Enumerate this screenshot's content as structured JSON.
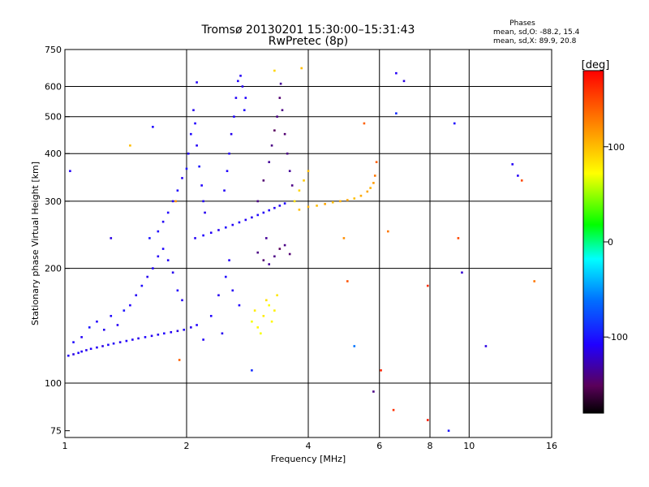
{
  "chart_data": {
    "type": "scatter",
    "title": "Tromsø 20130201 15:30:00–15:31:43",
    "subtitle": "RwPretec (8p)",
    "stats": {
      "heading": "Phases",
      "line_o": "mean, sd,O: -88.2, 15.4",
      "line_x": "mean, sd,X:  89.9, 20.8"
    },
    "xlabel": "Frequency [MHz]",
    "ylabel": "Stationary phase Virtual Height [km]",
    "xscale": "log",
    "yscale": "log",
    "xlim": [
      1,
      16
    ],
    "ylim": [
      72,
      750
    ],
    "x_ticks": [
      {
        "value": 1,
        "label": "1"
      },
      {
        "value": 2,
        "label": "2"
      },
      {
        "value": 4,
        "label": "4"
      },
      {
        "value": 6,
        "label": "6"
      },
      {
        "value": 8,
        "label": "8"
      },
      {
        "value": 10,
        "label": "10"
      },
      {
        "value": 16,
        "label": "16"
      }
    ],
    "x_gridlines": [
      2,
      4,
      6,
      8,
      10
    ],
    "y_ticks": [
      {
        "value": 75,
        "label": "75"
      },
      {
        "value": 100,
        "label": "100"
      },
      {
        "value": 200,
        "label": "200"
      },
      {
        "value": 300,
        "label": "300"
      },
      {
        "value": 400,
        "label": "400"
      },
      {
        "value": 500,
        "label": "500"
      },
      {
        "value": 600,
        "label": "600"
      },
      {
        "value": 750,
        "label": "750"
      }
    ],
    "y_gridlines": [
      100,
      200,
      300,
      400,
      500,
      600
    ],
    "grid": true,
    "colorbar": {
      "label": "[deg]",
      "min": -180,
      "max": 180,
      "ticks": [
        {
          "value": 100,
          "label": "100"
        },
        {
          "value": 0,
          "label": "0"
        },
        {
          "value": -100,
          "label": "-100"
        }
      ],
      "colormap": "rainbow"
    },
    "series": [
      {
        "values": [
          [
            1.02,
            118,
            -110
          ],
          [
            1.05,
            119,
            -115
          ],
          [
            1.08,
            120,
            -105
          ],
          [
            1.1,
            121,
            -110
          ],
          [
            1.13,
            122,
            -112
          ],
          [
            1.16,
            123,
            -108
          ],
          [
            1.2,
            124,
            -110
          ],
          [
            1.24,
            125,
            -115
          ],
          [
            1.28,
            126,
            -105
          ],
          [
            1.32,
            127,
            -110
          ],
          [
            1.37,
            128,
            -112
          ],
          [
            1.42,
            129,
            -108
          ],
          [
            1.47,
            130,
            -110
          ],
          [
            1.52,
            131,
            -114
          ],
          [
            1.58,
            132,
            -106
          ],
          [
            1.64,
            133,
            -110
          ],
          [
            1.7,
            134,
            -112
          ],
          [
            1.76,
            135,
            -108
          ],
          [
            1.83,
            136,
            -110
          ],
          [
            1.9,
            137,
            -115
          ],
          [
            1.97,
            138,
            -110
          ],
          [
            2.05,
            140,
            -112
          ],
          [
            2.12,
            142,
            -108
          ],
          [
            1.05,
            128,
            -105
          ],
          [
            1.1,
            132,
            -110
          ],
          [
            1.15,
            140,
            -100
          ],
          [
            1.2,
            145,
            -108
          ],
          [
            1.25,
            138,
            -112
          ],
          [
            1.3,
            150,
            -106
          ],
          [
            1.35,
            142,
            -110
          ],
          [
            1.4,
            155,
            -100
          ],
          [
            1.45,
            160,
            -108
          ],
          [
            1.5,
            170,
            -110
          ],
          [
            1.55,
            180,
            -105
          ],
          [
            1.6,
            190,
            -112
          ],
          [
            1.65,
            200,
            -108
          ],
          [
            1.7,
            215,
            -110
          ],
          [
            1.75,
            225,
            -106
          ],
          [
            1.8,
            210,
            -110
          ],
          [
            1.85,
            195,
            -112
          ],
          [
            1.9,
            175,
            -108
          ],
          [
            1.95,
            165,
            -110
          ],
          [
            1.62,
            240,
            -100
          ],
          [
            1.7,
            250,
            -105
          ],
          [
            1.75,
            265,
            -110
          ],
          [
            1.8,
            280,
            -108
          ],
          [
            1.85,
            300,
            -112
          ],
          [
            1.9,
            320,
            -106
          ],
          [
            1.95,
            345,
            -110
          ],
          [
            2.0,
            365,
            -100
          ],
          [
            2.02,
            400,
            -110
          ],
          [
            2.05,
            450,
            -105
          ],
          [
            2.08,
            520,
            -112
          ],
          [
            2.1,
            480,
            -108
          ],
          [
            2.12,
            420,
            -110
          ],
          [
            2.15,
            370,
            -100
          ],
          [
            2.18,
            330,
            -108
          ],
          [
            2.2,
            300,
            -110
          ],
          [
            2.22,
            280,
            -112
          ],
          [
            2.1,
            240,
            -110
          ],
          [
            2.2,
            244,
            -108
          ],
          [
            2.3,
            248,
            -110
          ],
          [
            2.4,
            252,
            -112
          ],
          [
            2.5,
            256,
            -106
          ],
          [
            2.6,
            260,
            -110
          ],
          [
            2.7,
            264,
            -108
          ],
          [
            2.8,
            268,
            -110
          ],
          [
            2.9,
            272,
            -112
          ],
          [
            3.0,
            276,
            -106
          ],
          [
            3.1,
            280,
            -110
          ],
          [
            3.2,
            284,
            -108
          ],
          [
            3.3,
            288,
            -110
          ],
          [
            3.4,
            292,
            -112
          ],
          [
            3.5,
            296,
            -106
          ],
          [
            2.48,
            320,
            -110
          ],
          [
            2.52,
            360,
            -108
          ],
          [
            2.55,
            400,
            -110
          ],
          [
            2.58,
            450,
            -112
          ],
          [
            2.62,
            500,
            -106
          ],
          [
            2.65,
            560,
            -110
          ],
          [
            2.68,
            620,
            -108
          ],
          [
            2.72,
            640,
            -110
          ],
          [
            2.75,
            600,
            -112
          ],
          [
            2.78,
            520,
            -106
          ],
          [
            2.2,
            130,
            -110
          ],
          [
            2.3,
            150,
            -108
          ],
          [
            2.4,
            170,
            -112
          ],
          [
            2.5,
            190,
            -106
          ],
          [
            2.6,
            175,
            -110
          ],
          [
            2.7,
            160,
            -108
          ],
          [
            2.55,
            210,
            -110
          ],
          [
            2.45,
            135,
            -112
          ],
          [
            3.0,
            300,
            -140
          ],
          [
            3.1,
            340,
            -145
          ],
          [
            3.2,
            380,
            -135
          ],
          [
            3.25,
            420,
            -140
          ],
          [
            3.3,
            460,
            -150
          ],
          [
            3.35,
            500,
            -140
          ],
          [
            3.4,
            560,
            -145
          ],
          [
            3.42,
            610,
            -135
          ],
          [
            3.45,
            520,
            -140
          ],
          [
            3.5,
            450,
            -145
          ],
          [
            3.55,
            400,
            -140
          ],
          [
            3.6,
            360,
            -135
          ],
          [
            3.65,
            330,
            -140
          ],
          [
            3.0,
            220,
            -140
          ],
          [
            3.1,
            210,
            -145
          ],
          [
            3.2,
            205,
            -135
          ],
          [
            3.3,
            215,
            -140
          ],
          [
            3.4,
            225,
            -150
          ],
          [
            3.5,
            230,
            -140
          ],
          [
            3.6,
            218,
            -145
          ],
          [
            3.15,
            240,
            -135
          ],
          [
            2.9,
            145,
            70
          ],
          [
            3.0,
            140,
            75
          ],
          [
            3.1,
            150,
            80
          ],
          [
            3.2,
            160,
            72
          ],
          [
            3.3,
            155,
            78
          ],
          [
            3.05,
            135,
            70
          ],
          [
            3.15,
            165,
            85
          ],
          [
            3.25,
            145,
            75
          ],
          [
            2.95,
            155,
            80
          ],
          [
            3.35,
            170,
            82
          ],
          [
            3.8,
            285,
            100
          ],
          [
            4.0,
            290,
            105
          ],
          [
            4.2,
            292,
            100
          ],
          [
            4.4,
            295,
            110
          ],
          [
            4.6,
            298,
            100
          ],
          [
            4.8,
            300,
            105
          ],
          [
            5.0,
            302,
            110
          ],
          [
            5.2,
            305,
            100
          ],
          [
            5.4,
            310,
            108
          ],
          [
            5.6,
            318,
            110
          ],
          [
            5.7,
            325,
            105
          ],
          [
            5.8,
            335,
            115
          ],
          [
            5.85,
            350,
            130
          ],
          [
            5.9,
            380,
            140
          ],
          [
            3.8,
            320,
            90
          ],
          [
            3.9,
            340,
            95
          ],
          [
            4.0,
            360,
            100
          ],
          [
            3.7,
            300,
            85
          ],
          [
            1.03,
            360,
            -110
          ],
          [
            1.3,
            240,
            -115
          ],
          [
            1.45,
            420,
            100
          ],
          [
            1.65,
            470,
            -105
          ],
          [
            1.88,
            300,
            120
          ],
          [
            2.12,
            615,
            -110
          ],
          [
            2.8,
            560,
            -108
          ],
          [
            3.3,
            660,
            90
          ],
          [
            3.85,
            670,
            100
          ],
          [
            5.5,
            480,
            140
          ],
          [
            6.3,
            250,
            130
          ],
          [
            6.6,
            650,
            -110
          ],
          [
            6.9,
            620,
            -115
          ],
          [
            6.6,
            510,
            -90
          ],
          [
            9.2,
            480,
            -105
          ],
          [
            9.4,
            240,
            150
          ],
          [
            9.6,
            195,
            -120
          ],
          [
            7.9,
            180,
            160
          ],
          [
            5.2,
            125,
            -60
          ],
          [
            5.8,
            95,
            -140
          ],
          [
            6.05,
            108,
            165
          ],
          [
            6.5,
            85,
            160
          ],
          [
            7.9,
            80,
            170
          ],
          [
            8.9,
            75,
            -100
          ],
          [
            11.0,
            125,
            -115
          ],
          [
            13.5,
            340,
            150
          ],
          [
            14.5,
            185,
            130
          ],
          [
            12.8,
            375,
            -110
          ],
          [
            13.2,
            350,
            -110
          ],
          [
            2.9,
            108,
            -90
          ],
          [
            1.92,
            115,
            140
          ],
          [
            4.9,
            240,
            120
          ],
          [
            5.0,
            185,
            145
          ]
        ]
      }
    ]
  }
}
